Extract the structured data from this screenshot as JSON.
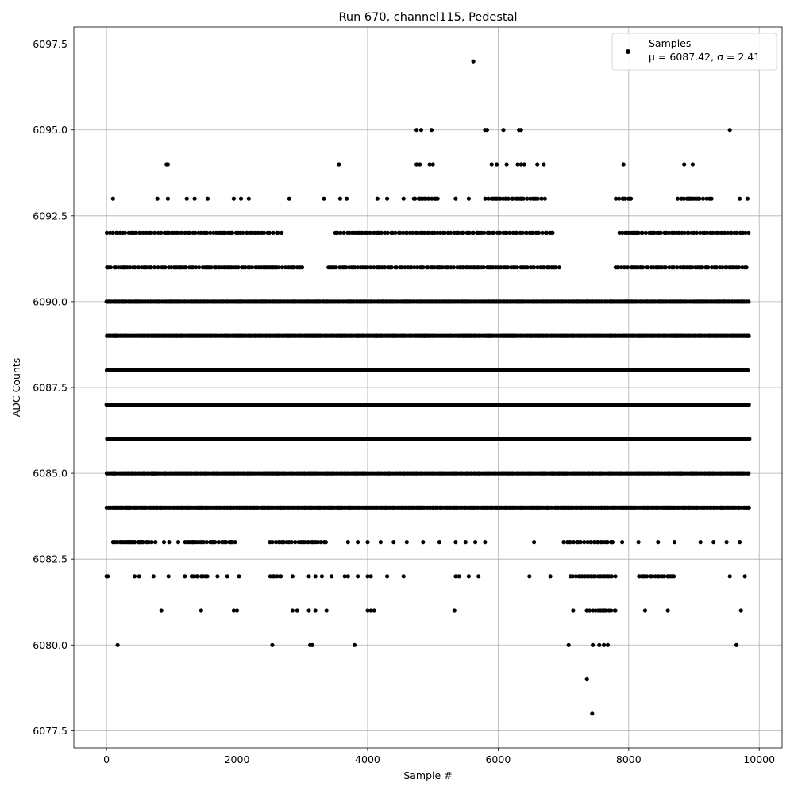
{
  "chart_data": {
    "type": "scatter",
    "title": "Run 670, channel115, Pedestal",
    "xlabel": "Sample #",
    "ylabel": "ADC Counts",
    "xlim": [
      -500,
      10350
    ],
    "ylim": [
      6077.0,
      6098.0
    ],
    "x_ticks": [
      0,
      2000,
      4000,
      6000,
      8000,
      10000
    ],
    "x_tick_labels": [
      "0",
      "2000",
      "4000",
      "6000",
      "8000",
      "10000"
    ],
    "y_ticks": [
      6077.5,
      6080.0,
      6082.5,
      6085.0,
      6087.5,
      6090.0,
      6092.5,
      6095.0,
      6097.5
    ],
    "y_tick_labels": [
      "6077.5",
      "6080.0",
      "6082.5",
      "6085.0",
      "6087.5",
      "6090.0",
      "6092.5",
      "6095.0",
      "6097.5"
    ],
    "grid": true,
    "legend": {
      "position": "top-right",
      "entries": [
        "Samples",
        "μ = 6087.42, σ = 2.41"
      ]
    },
    "marker_color": "#000000",
    "series": [
      {
        "name": "Samples",
        "sample_range": [
          0,
          9850
        ],
        "dense_levels": [
          6084,
          6085,
          6086,
          6087,
          6088,
          6089,
          6090
        ],
        "level_segments": [
          {
            "y": 6091,
            "ranges": [
              [
                0,
                3000
              ],
              [
                3400,
                6950
              ],
              [
                7800,
                9850
              ]
            ]
          },
          {
            "y": 6092,
            "ranges": [
              [
                0,
                2700
              ],
              [
                3500,
                6850
              ],
              [
                7850,
                9850
              ]
            ]
          },
          {
            "y": 6093,
            "ranges": [
              [
                4700,
                5100
              ],
              [
                5800,
                6750
              ],
              [
                7800,
                8050
              ],
              [
                8750,
                9300
              ]
            ]
          },
          {
            "y": 6083,
            "ranges": [
              [
                100,
                700
              ],
              [
                1200,
                2000
              ],
              [
                2500,
                3400
              ],
              [
                7000,
                7800
              ]
            ]
          },
          {
            "y": 6082,
            "ranges": [
              [
                1300,
                1550
              ],
              [
                2500,
                2700
              ],
              [
                7100,
                7800
              ],
              [
                8150,
                8700
              ]
            ]
          },
          {
            "y": 6081,
            "ranges": [
              [
                7350,
                7800
              ]
            ]
          }
        ],
        "points": [
          [
            100,
            6093
          ],
          [
            780,
            6093
          ],
          [
            940,
            6093
          ],
          [
            1230,
            6093
          ],
          [
            1350,
            6093
          ],
          [
            1550,
            6093
          ],
          [
            1950,
            6093
          ],
          [
            2060,
            6093
          ],
          [
            2180,
            6093
          ],
          [
            2800,
            6093
          ],
          [
            3330,
            6093
          ],
          [
            3580,
            6093
          ],
          [
            3680,
            6093
          ],
          [
            4150,
            6093
          ],
          [
            4300,
            6093
          ],
          [
            4550,
            6093
          ],
          [
            5350,
            6093
          ],
          [
            5550,
            6093
          ],
          [
            9700,
            6093
          ],
          [
            9820,
            6093
          ],
          [
            920,
            6094
          ],
          [
            940,
            6094
          ],
          [
            3560,
            6094
          ],
          [
            4750,
            6094
          ],
          [
            4800,
            6094
          ],
          [
            4950,
            6094
          ],
          [
            5000,
            6094
          ],
          [
            5900,
            6094
          ],
          [
            5980,
            6094
          ],
          [
            6130,
            6094
          ],
          [
            6300,
            6094
          ],
          [
            6350,
            6094
          ],
          [
            6400,
            6094
          ],
          [
            6600,
            6094
          ],
          [
            6700,
            6094
          ],
          [
            7920,
            6094
          ],
          [
            8850,
            6094
          ],
          [
            8980,
            6094
          ],
          [
            4750,
            6095
          ],
          [
            4820,
            6095
          ],
          [
            4980,
            6095
          ],
          [
            5800,
            6095
          ],
          [
            5830,
            6095
          ],
          [
            6080,
            6095
          ],
          [
            6320,
            6095
          ],
          [
            6350,
            6095
          ],
          [
            9550,
            6095
          ],
          [
            5620,
            6097
          ],
          [
            350,
            6083
          ],
          [
            430,
            6083
          ],
          [
            500,
            6083
          ],
          [
            750,
            6083
          ],
          [
            880,
            6083
          ],
          [
            960,
            6083
          ],
          [
            1100,
            6083
          ],
          [
            3700,
            6083
          ],
          [
            3850,
            6083
          ],
          [
            4000,
            6083
          ],
          [
            4200,
            6083
          ],
          [
            4400,
            6083
          ],
          [
            4600,
            6083
          ],
          [
            4850,
            6083
          ],
          [
            5100,
            6083
          ],
          [
            5350,
            6083
          ],
          [
            5500,
            6083
          ],
          [
            5650,
            6083
          ],
          [
            5800,
            6083
          ],
          [
            6550,
            6083
          ],
          [
            7900,
            6083
          ],
          [
            8150,
            6083
          ],
          [
            8450,
            6083
          ],
          [
            8700,
            6083
          ],
          [
            9100,
            6083
          ],
          [
            9300,
            6083
          ],
          [
            9500,
            6083
          ],
          [
            9700,
            6083
          ],
          [
            0,
            6082
          ],
          [
            20,
            6082
          ],
          [
            430,
            6082
          ],
          [
            500,
            6082
          ],
          [
            720,
            6082
          ],
          [
            950,
            6082
          ],
          [
            1200,
            6082
          ],
          [
            1700,
            6082
          ],
          [
            1850,
            6082
          ],
          [
            2030,
            6082
          ],
          [
            2850,
            6082
          ],
          [
            3100,
            6082
          ],
          [
            3200,
            6082
          ],
          [
            3300,
            6082
          ],
          [
            3450,
            6082
          ],
          [
            3650,
            6082
          ],
          [
            3700,
            6082
          ],
          [
            3850,
            6082
          ],
          [
            4000,
            6082
          ],
          [
            4050,
            6082
          ],
          [
            4300,
            6082
          ],
          [
            4550,
            6082
          ],
          [
            5350,
            6082
          ],
          [
            5400,
            6082
          ],
          [
            5550,
            6082
          ],
          [
            5700,
            6082
          ],
          [
            6480,
            6082
          ],
          [
            6800,
            6082
          ],
          [
            9550,
            6082
          ],
          [
            9780,
            6082
          ],
          [
            840,
            6081
          ],
          [
            1450,
            6081
          ],
          [
            1950,
            6081
          ],
          [
            2000,
            6081
          ],
          [
            2850,
            6081
          ],
          [
            2920,
            6081
          ],
          [
            3100,
            6081
          ],
          [
            3200,
            6081
          ],
          [
            3370,
            6081
          ],
          [
            4000,
            6081
          ],
          [
            4050,
            6081
          ],
          [
            4100,
            6081
          ],
          [
            5330,
            6081
          ],
          [
            7150,
            6081
          ],
          [
            8250,
            6081
          ],
          [
            8600,
            6081
          ],
          [
            9720,
            6081
          ],
          [
            170,
            6080
          ],
          [
            2540,
            6080
          ],
          [
            3120,
            6080
          ],
          [
            3150,
            6080
          ],
          [
            3800,
            6080
          ],
          [
            7080,
            6080
          ],
          [
            7450,
            6080
          ],
          [
            7550,
            6080
          ],
          [
            7620,
            6080
          ],
          [
            7680,
            6080
          ],
          [
            9650,
            6080
          ],
          [
            7360,
            6079
          ],
          [
            7440,
            6078
          ]
        ]
      }
    ]
  }
}
